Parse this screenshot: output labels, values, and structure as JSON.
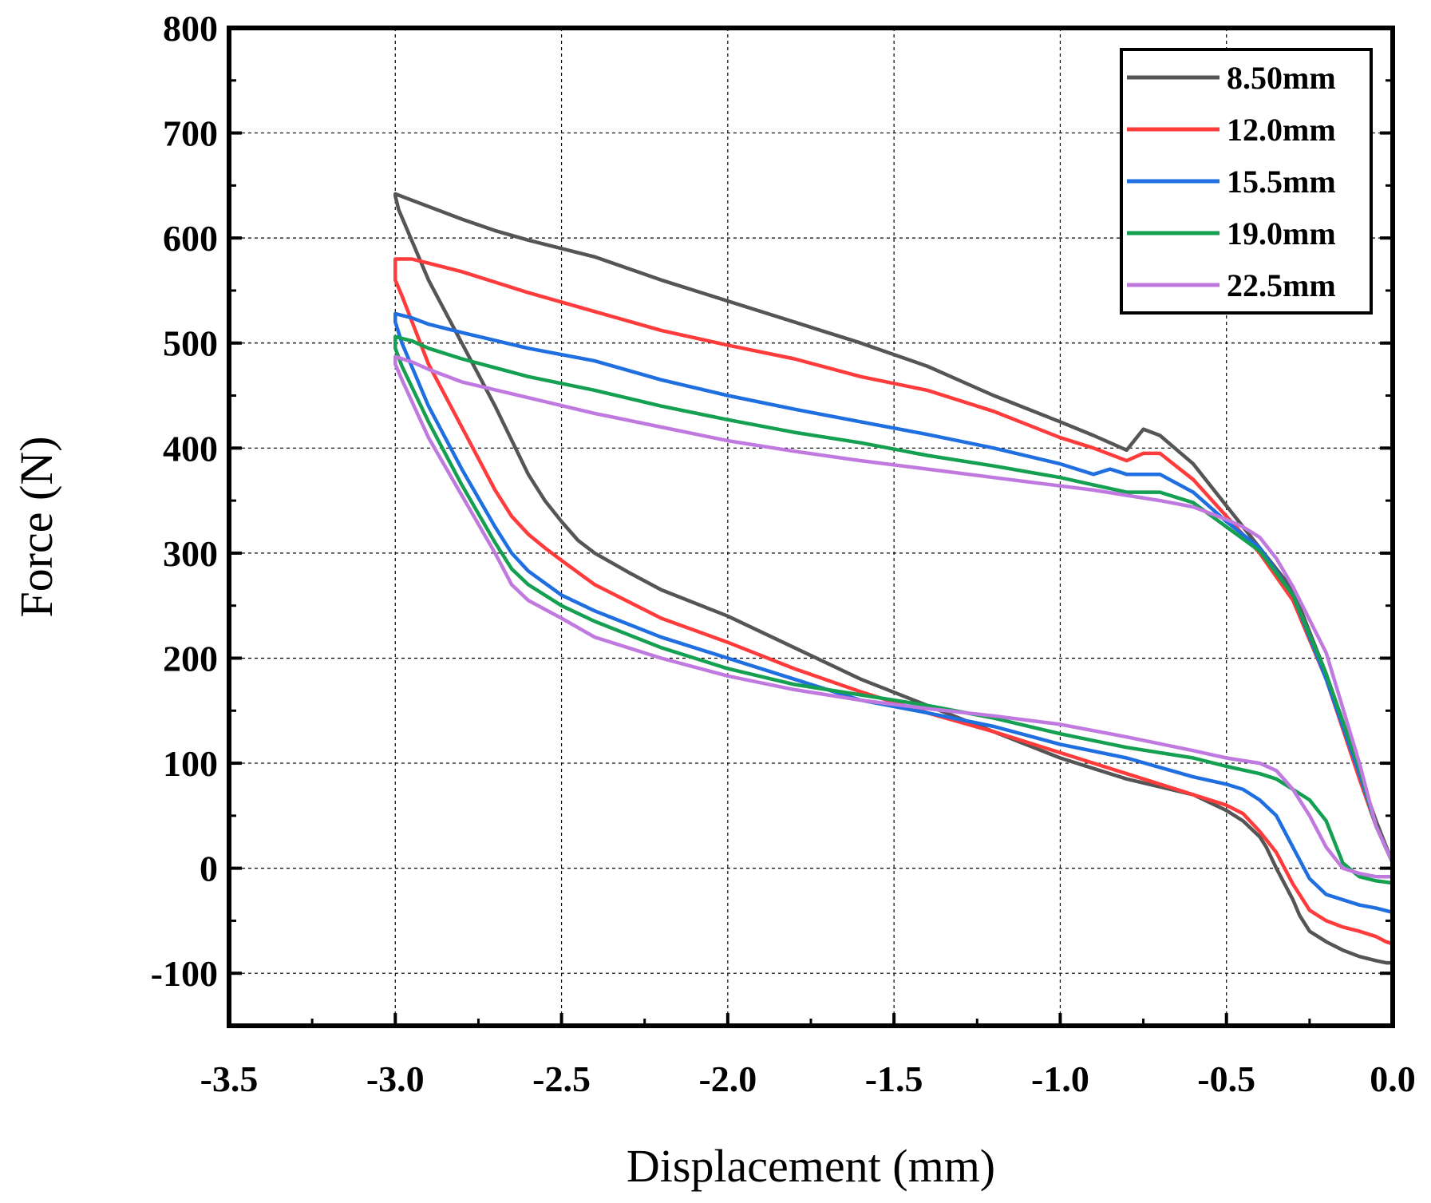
{
  "chart_data": {
    "type": "line",
    "title": "",
    "xlabel": "Displacement (mm)",
    "ylabel": "Force (N)",
    "xlim": [
      -3.5,
      0.0
    ],
    "ylim": [
      -150,
      800
    ],
    "xticks": [
      -3.5,
      -3.0,
      -2.5,
      -2.0,
      -1.5,
      -1.0,
      -0.5,
      0.0
    ],
    "xtick_labels": [
      "-3.5",
      "-3.0",
      "-2.5",
      "-2.0",
      "-1.5",
      "-1.0",
      "-0.5",
      "0.0"
    ],
    "yticks": [
      -100,
      0,
      100,
      200,
      300,
      400,
      500,
      600,
      700,
      800
    ],
    "ytick_labels": [
      "-100",
      "0",
      "100",
      "200",
      "300",
      "400",
      "500",
      "600",
      "700",
      "800"
    ],
    "grid": true,
    "legend_position": "top-right",
    "series": [
      {
        "name": "8.50mm",
        "color": "#555555",
        "x": [
          0.0,
          -0.05,
          -0.1,
          -0.2,
          -0.3,
          -0.4,
          -0.5,
          -0.6,
          -0.7,
          -0.75,
          -0.8,
          -0.9,
          -1.0,
          -1.2,
          -1.4,
          -1.6,
          -1.8,
          -2.0,
          -2.2,
          -2.4,
          -2.6,
          -2.7,
          -2.8,
          -2.9,
          -3.0,
          -3.0,
          -2.99,
          -2.9,
          -2.8,
          -2.7,
          -2.6,
          -2.55,
          -2.5,
          -2.45,
          -2.4,
          -2.3,
          -2.2,
          -2.0,
          -1.8,
          -1.6,
          -1.4,
          -1.2,
          -1.0,
          -0.8,
          -0.6,
          -0.5,
          -0.45,
          -0.4,
          -0.38,
          -0.35,
          -0.3,
          -0.28,
          -0.25,
          -0.2,
          -0.15,
          -0.1,
          -0.05,
          -0.02,
          0.0
        ],
        "y": [
          5,
          45,
          90,
          185,
          265,
          305,
          345,
          385,
          412,
          418,
          398,
          412,
          425,
          450,
          478,
          500,
          520,
          540,
          560,
          582,
          598,
          607,
          618,
          630,
          642,
          640,
          627,
          560,
          500,
          440,
          375,
          350,
          330,
          312,
          300,
          282,
          265,
          240,
          210,
          180,
          155,
          130,
          105,
          85,
          70,
          55,
          45,
          30,
          20,
          0,
          -30,
          -45,
          -60,
          -70,
          -78,
          -84,
          -88,
          -90,
          -90
        ]
      },
      {
        "name": "12.0mm",
        "color": "#ff3b3b",
        "x": [
          0.0,
          -0.05,
          -0.1,
          -0.2,
          -0.3,
          -0.4,
          -0.5,
          -0.6,
          -0.7,
          -0.75,
          -0.8,
          -0.9,
          -1.0,
          -1.2,
          -1.4,
          -1.6,
          -1.8,
          -2.0,
          -2.2,
          -2.4,
          -2.6,
          -2.8,
          -2.9,
          -2.95,
          -2.98,
          -3.0,
          -3.0,
          -2.98,
          -2.9,
          -2.8,
          -2.7,
          -2.65,
          -2.6,
          -2.55,
          -2.5,
          -2.4,
          -2.2,
          -2.0,
          -1.8,
          -1.6,
          -1.4,
          -1.2,
          -1.0,
          -0.8,
          -0.6,
          -0.5,
          -0.45,
          -0.4,
          -0.35,
          -0.3,
          -0.25,
          -0.2,
          -0.15,
          -0.1,
          -0.05,
          -0.02,
          0.0
        ],
        "y": [
          5,
          40,
          85,
          180,
          255,
          300,
          335,
          370,
          395,
          395,
          388,
          400,
          410,
          435,
          455,
          468,
          485,
          498,
          512,
          530,
          548,
          568,
          576,
          580,
          580,
          580,
          560,
          545,
          480,
          420,
          360,
          335,
          318,
          305,
          293,
          270,
          238,
          215,
          190,
          168,
          148,
          130,
          110,
          90,
          70,
          60,
          52,
          35,
          15,
          -15,
          -40,
          -50,
          -56,
          -60,
          -65,
          -70,
          -72
        ]
      },
      {
        "name": "15.5mm",
        "color": "#1f6fe0",
        "x": [
          0.0,
          -0.05,
          -0.1,
          -0.2,
          -0.3,
          -0.4,
          -0.5,
          -0.6,
          -0.7,
          -0.8,
          -0.85,
          -0.9,
          -1.0,
          -1.2,
          -1.4,
          -1.6,
          -1.8,
          -2.0,
          -2.2,
          -2.4,
          -2.6,
          -2.8,
          -2.9,
          -2.95,
          -3.0,
          -3.0,
          -2.98,
          -2.9,
          -2.8,
          -2.7,
          -2.65,
          -2.6,
          -2.5,
          -2.4,
          -2.2,
          -2.0,
          -1.8,
          -1.6,
          -1.4,
          -1.2,
          -1.0,
          -0.8,
          -0.6,
          -0.5,
          -0.45,
          -0.4,
          -0.35,
          -0.3,
          -0.25,
          -0.2,
          -0.15,
          -0.1,
          -0.05,
          0.0
        ],
        "y": [
          5,
          40,
          90,
          180,
          260,
          305,
          330,
          358,
          375,
          375,
          380,
          375,
          385,
          400,
          413,
          425,
          437,
          450,
          465,
          483,
          495,
          510,
          518,
          524,
          528,
          520,
          500,
          440,
          380,
          325,
          300,
          283,
          260,
          245,
          220,
          200,
          180,
          160,
          148,
          135,
          118,
          105,
          87,
          80,
          75,
          65,
          50,
          20,
          -10,
          -25,
          -30,
          -35,
          -38,
          -42
        ]
      },
      {
        "name": "19.0mm",
        "color": "#14a050",
        "x": [
          0.0,
          -0.05,
          -0.1,
          -0.2,
          -0.3,
          -0.4,
          -0.5,
          -0.6,
          -0.7,
          -0.8,
          -0.9,
          -1.0,
          -1.2,
          -1.4,
          -1.6,
          -1.8,
          -2.0,
          -2.2,
          -2.4,
          -2.6,
          -2.8,
          -2.9,
          -2.95,
          -3.0,
          -3.0,
          -2.98,
          -2.9,
          -2.8,
          -2.7,
          -2.65,
          -2.6,
          -2.5,
          -2.4,
          -2.2,
          -2.0,
          -1.8,
          -1.6,
          -1.4,
          -1.2,
          -1.0,
          -0.8,
          -0.6,
          -0.5,
          -0.4,
          -0.35,
          -0.3,
          -0.25,
          -0.2,
          -0.15,
          -0.1,
          -0.05,
          0.0
        ],
        "y": [
          5,
          40,
          95,
          185,
          260,
          302,
          325,
          348,
          358,
          358,
          365,
          372,
          383,
          393,
          405,
          415,
          427,
          440,
          455,
          468,
          485,
          495,
          502,
          506,
          495,
          478,
          425,
          365,
          310,
          285,
          270,
          250,
          235,
          210,
          190,
          175,
          165,
          155,
          143,
          128,
          115,
          105,
          97,
          90,
          85,
          75,
          65,
          45,
          5,
          -8,
          -12,
          -14
        ]
      },
      {
        "name": "22.5mm",
        "color": "#c07adf",
        "x": [
          0.0,
          -0.05,
          -0.1,
          -0.2,
          -0.3,
          -0.35,
          -0.4,
          -0.45,
          -0.5,
          -0.6,
          -0.7,
          -0.8,
          -0.9,
          -1.0,
          -1.2,
          -1.4,
          -1.6,
          -1.8,
          -2.0,
          -2.2,
          -2.4,
          -2.6,
          -2.8,
          -2.9,
          -2.95,
          -3.0,
          -3.0,
          -2.98,
          -2.9,
          -2.8,
          -2.7,
          -2.65,
          -2.6,
          -2.5,
          -2.4,
          -2.2,
          -2.0,
          -1.8,
          -1.6,
          -1.4,
          -1.2,
          -1.0,
          -0.8,
          -0.6,
          -0.5,
          -0.4,
          -0.35,
          -0.3,
          -0.25,
          -0.2,
          -0.15,
          -0.1,
          -0.05,
          0.0
        ],
        "y": [
          5,
          40,
          100,
          205,
          268,
          295,
          315,
          325,
          332,
          344,
          350,
          355,
          360,
          364,
          372,
          380,
          388,
          397,
          407,
          420,
          433,
          448,
          463,
          475,
          482,
          487,
          480,
          465,
          410,
          355,
          300,
          270,
          255,
          238,
          220,
          200,
          183,
          170,
          160,
          152,
          145,
          137,
          125,
          112,
          105,
          100,
          93,
          75,
          50,
          20,
          0,
          -5,
          -8,
          -8
        ]
      }
    ]
  }
}
